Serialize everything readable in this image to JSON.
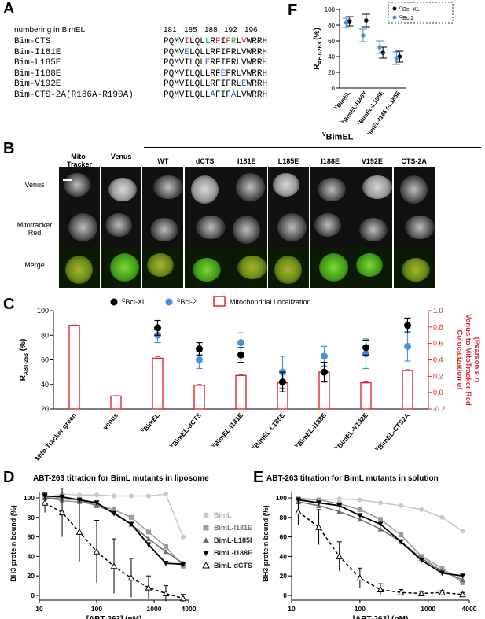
{
  "panelA": {
    "label": "A",
    "header": "numbering in BimEL",
    "positions": [
      "181",
      "185",
      "188",
      "192",
      "196"
    ],
    "rows": [
      {
        "name": "Bim-CTS",
        "segments": [
          [
            "PQMV",
            ""
          ],
          [
            "I",
            "r"
          ],
          [
            "LQL",
            ""
          ],
          [
            "L",
            "g"
          ],
          [
            "R",
            ""
          ],
          [
            "F",
            "r"
          ],
          [
            "I",
            ""
          ],
          [
            "F",
            "r"
          ],
          [
            "R",
            "g"
          ],
          [
            "L",
            ""
          ],
          [
            "V",
            "r"
          ],
          [
            "WRRH",
            ""
          ]
        ]
      },
      {
        "name": "Bim-I181E",
        "segments": [
          [
            "PQMV",
            ""
          ],
          [
            "E",
            "b"
          ],
          [
            "LQLLRFIFRLVWRRH",
            ""
          ]
        ]
      },
      {
        "name": "Bim-L185E",
        "segments": [
          [
            "PQMVILQL",
            ""
          ],
          [
            "E",
            "b"
          ],
          [
            "RFIFRLVWRRH",
            ""
          ]
        ]
      },
      {
        "name": "Bim-I188E",
        "segments": [
          [
            "PQMVILQLLRF",
            ""
          ],
          [
            "E",
            "b"
          ],
          [
            "FRLVWRRH",
            ""
          ]
        ]
      },
      {
        "name": "Bim-V192E",
        "segments": [
          [
            "PQMVILQLLRFIFRL",
            ""
          ],
          [
            "E",
            "b"
          ],
          [
            "WRRH",
            ""
          ]
        ]
      },
      {
        "name": "Bim-CTS-2A(R186A-R190A)",
        "segments": [
          [
            "PQMVILQLL",
            ""
          ],
          [
            "A",
            "b"
          ],
          [
            "FIF",
            ""
          ],
          [
            "A",
            "b"
          ],
          [
            "LVWRRH",
            ""
          ]
        ]
      }
    ]
  },
  "panelB": {
    "label": "B",
    "group_label": "BimEL",
    "group_sup": "V",
    "columns": [
      "Mito-Tracker Green",
      "Venus",
      "WT",
      "dCTS",
      "I181E",
      "L185E",
      "I188E",
      "V192E",
      "CTS-2A"
    ],
    "rows": [
      "Venus",
      "Mitotracker Red",
      "Merge"
    ]
  },
  "panelC": {
    "label": "C",
    "legend": {
      "bclxl": "Bcl-XL",
      "bclxl_sup": "C",
      "bcl2": "Bcl-2",
      "bcl2_sup": "C",
      "mito": "Mitochondrial Localization"
    },
    "ylabel_left": "R",
    "ylabel_left_sub": "ABT-263",
    "ylabel_left_unit": "(%)",
    "ylabel_right": "Colocalization of Venus to MitoTracker-Red (Pearson's r)",
    "ylabel_right_1": "Colocalization of",
    "ylabel_right_2": "Venus to MitoTracker-Red",
    "ylabel_right_3": "(Pearson's r)",
    "left_ticks": [
      "100",
      "80",
      "60",
      "40",
      "20"
    ],
    "right_ticks": [
      "1.0",
      "0.8",
      "0.6",
      "0.4",
      "0.2",
      "0.0",
      "-0.2"
    ],
    "categories": [
      "Mito-Tracker green",
      "venus",
      "BimEL",
      "BimEL-dCTS",
      "BimEL-I181E",
      "BimEL-L185E",
      "BimEL-I188E",
      "BimEL-V192E",
      "BimEL-CTS2A"
    ],
    "category_sup": [
      "",
      "",
      "V",
      "V",
      "V",
      "V",
      "V",
      "V",
      "V"
    ],
    "colors": {
      "bclxl": "#000000",
      "bcl2": "#4a8fe0",
      "mito": "#e0262d"
    }
  },
  "panelD": {
    "label": "D",
    "title": "ABT-263 titration for BimL mutants in liposome",
    "ylabel": "BH3 protein bound (%)",
    "xlabel": "[ABT-263] (nM)",
    "xticks": [
      "10",
      "100",
      "1000",
      "4000"
    ],
    "yticks": [
      "100",
      "80",
      "60",
      "40",
      "20",
      "0"
    ],
    "legend": [
      "BimL",
      "BimL-I181E",
      "BimL-L185E",
      "BimL-I188E",
      "BimL-dCTS"
    ]
  },
  "panelE": {
    "label": "E",
    "title": "ABT-263 titration for BimL mutants in solution",
    "ylabel": "BH3 protein bound (%)",
    "xlabel": "[ABT-263] (nM)",
    "xticks": [
      "10",
      "100",
      "1000",
      "4000"
    ],
    "yticks": [
      "100",
      "80",
      "60",
      "40",
      "20",
      "0"
    ]
  },
  "panelF": {
    "label": "F",
    "ylabel": "R",
    "ylabel_sub": "ABT-263",
    "ylabel_unit": "(%)",
    "yticks": [
      "100",
      "80",
      "60",
      "40",
      "20",
      "0"
    ],
    "categories": [
      "BimEL",
      "BimEL-I146Y",
      "BimEL-L185E",
      "BimEL-I146Y-L185E"
    ],
    "legend": [
      "Bcl-XL",
      "Bcl2"
    ],
    "legend_sup": [
      "C",
      "C"
    ]
  },
  "chart_data": [
    {
      "type": "bar",
      "panel": "C",
      "categories": [
        "Mito-Tracker green",
        "venus",
        "BimEL",
        "BimEL-dCTS",
        "BimEL-I181E",
        "BimEL-L185E",
        "BimEL-I188E",
        "BimEL-V192E",
        "BimEL-CTS2A"
      ],
      "ylim_left": [
        20,
        100
      ],
      "ylim_right": [
        -0.2,
        1.0
      ],
      "series": [
        {
          "name": "Mitochondrial Localization",
          "axis": "right",
          "values": [
            0.82,
            -0.04,
            0.42,
            0.09,
            0.21,
            0.12,
            0.25,
            0.12,
            0.27
          ],
          "errors": [
            0.005,
            0.005,
            0.02,
            0.01,
            0.01,
            0.01,
            0.01,
            0.01,
            0.01
          ]
        },
        {
          "name": "Bcl-XL",
          "axis": "left",
          "values": [
            null,
            null,
            86,
            69,
            64,
            42,
            50,
            70,
            88
          ],
          "errors": [
            null,
            null,
            6,
            5,
            6,
            8,
            8,
            6,
            6
          ]
        },
        {
          "name": "Bcl-2",
          "axis": "left",
          "values": [
            null,
            null,
            80,
            60,
            74,
            50,
            63,
            65,
            71
          ],
          "errors": [
            null,
            null,
            6,
            7,
            8,
            13,
            8,
            12,
            12
          ]
        }
      ]
    },
    {
      "type": "line",
      "panel": "D",
      "xscale": "log",
      "xlim": [
        10,
        4000
      ],
      "ylim": [
        0,
        100
      ],
      "x": [
        12.5,
        25,
        50,
        100,
        200,
        400,
        800,
        1600,
        3200
      ],
      "series": [
        {
          "name": "BimL",
          "values": [
            100,
            104,
            103,
            103,
            102,
            102,
            102,
            104,
            60
          ]
        },
        {
          "name": "BimL-I181E",
          "values": [
            101,
            97,
            96,
            93,
            88,
            80,
            65,
            50,
            30
          ]
        },
        {
          "name": "BimL-L185E",
          "values": [
            100,
            99,
            98,
            92,
            85,
            73,
            58,
            45,
            33
          ]
        },
        {
          "name": "BimL-I188E",
          "values": [
            102,
            101,
            98,
            95,
            84,
            73,
            52,
            33,
            32
          ]
        },
        {
          "name": "BimL-dCTS",
          "values": [
            95,
            85,
            65,
            45,
            30,
            18,
            8,
            2,
            -3
          ],
          "errors": [
            10,
            25,
            30,
            32,
            28,
            20,
            12,
            8,
            4
          ]
        }
      ]
    },
    {
      "type": "line",
      "panel": "E",
      "xscale": "log",
      "xlim": [
        10,
        4000
      ],
      "ylim": [
        0,
        100
      ],
      "x": [
        12.5,
        25,
        50,
        100,
        200,
        400,
        800,
        1600,
        3200
      ],
      "series": [
        {
          "name": "BimL",
          "values": [
            100,
            98,
            99,
            98,
            95,
            92,
            88,
            80,
            66
          ]
        },
        {
          "name": "BimL-I181E",
          "values": [
            99,
            98,
            94,
            88,
            78,
            62,
            40,
            28,
            13
          ]
        },
        {
          "name": "BimL-L185E",
          "values": [
            96,
            92,
            86,
            78,
            68,
            55,
            38,
            25,
            16
          ]
        },
        {
          "name": "BimL-I188E",
          "values": [
            98,
            95,
            92,
            82,
            73,
            55,
            36,
            23,
            20
          ]
        },
        {
          "name": "BimL-dCTS",
          "values": [
            86,
            70,
            40,
            18,
            6,
            3,
            2,
            3,
            1
          ],
          "errors": [
            14,
            18,
            15,
            10,
            6,
            3,
            2,
            2,
            2
          ]
        }
      ]
    },
    {
      "type": "scatter",
      "panel": "F",
      "ylim": [
        0,
        100
      ],
      "categories": [
        "BimEL",
        "BimEL-I146Y",
        "BimEL-L185E",
        "BimEL-I146Y-L185E"
      ],
      "series": [
        {
          "name": "Bcl-XL",
          "values": [
            85,
            86,
            45,
            40
          ],
          "errors": [
            6,
            8,
            7,
            7
          ]
        },
        {
          "name": "Bcl2",
          "values": [
            83,
            67,
            52,
            38
          ],
          "errors": [
            6,
            8,
            8,
            8
          ]
        }
      ]
    }
  ]
}
